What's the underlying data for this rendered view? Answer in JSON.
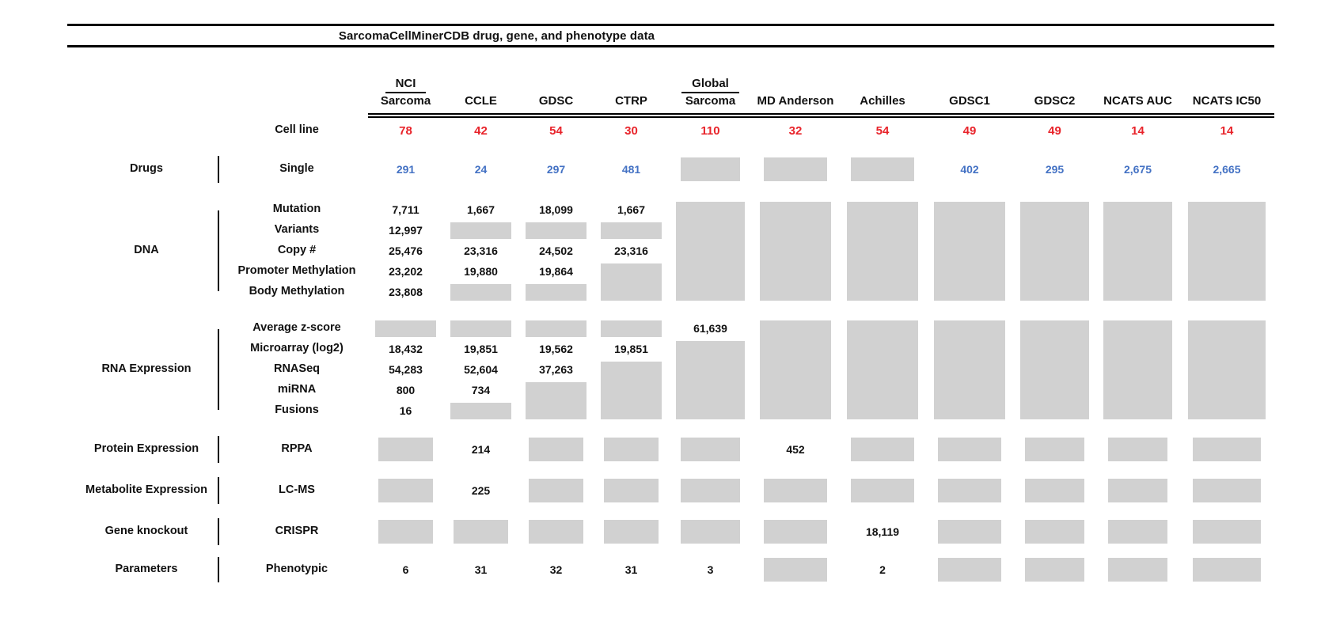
{
  "title": "SarcomaCellMinerCDB drug, gene, and phenotype data",
  "colors": {
    "red": "#e8232a",
    "blue": "#4472c4",
    "box_gray": "#d1d1d1",
    "text": "#111111"
  },
  "chart_data": {
    "type": "table",
    "title": "SarcomaCellMinerCDB drug, gene, and phenotype data",
    "note_gray_cells": "gray box shown in cell (no number displayed)",
    "columns": [
      {
        "id": "nci-sarcoma",
        "label_top": "NCI",
        "label": "Sarcoma"
      },
      {
        "id": "ccle",
        "label": "CCLE"
      },
      {
        "id": "gdsc",
        "label": "GDSC"
      },
      {
        "id": "ctrp",
        "label": "CTRP"
      },
      {
        "id": "global-sarcoma",
        "label_top": "Global",
        "label": "Sarcoma"
      },
      {
        "id": "md-anderson",
        "label": "MD Anderson"
      },
      {
        "id": "achilles",
        "label": "Achilles"
      },
      {
        "id": "gdsc1",
        "label": "GDSC1"
      },
      {
        "id": "gdsc2",
        "label": "GDSC2"
      },
      {
        "id": "ncats-auc",
        "label": "NCATS AUC"
      },
      {
        "id": "ncats-ic50",
        "label": "NCATS IC50"
      }
    ],
    "cell_line_row": {
      "label": "Cell line",
      "values": [
        "78",
        "42",
        "54",
        "30",
        "110",
        "32",
        "54",
        "49",
        "49",
        "14",
        "14"
      ]
    },
    "sections": [
      {
        "id": "drugs",
        "category": "Drugs",
        "rows": [
          {
            "label": "Single",
            "cells": [
              {
                "v": "291",
                "c": "blue"
              },
              {
                "v": "24",
                "c": "blue"
              },
              {
                "v": "297",
                "c": "blue"
              },
              {
                "v": "481",
                "c": "blue"
              },
              {
                "b": 1
              },
              {
                "b": 1
              },
              {
                "b": 1
              },
              {
                "v": "402",
                "c": "blue"
              },
              {
                "v": "295",
                "c": "blue"
              },
              {
                "v": "2,675",
                "c": "blue"
              },
              {
                "v": "2,665",
                "c": "blue"
              }
            ]
          }
        ]
      },
      {
        "id": "dna",
        "category": "DNA",
        "rows": [
          {
            "label": "Mutation",
            "cells": [
              {
                "v": "7,711"
              },
              {
                "v": "1,667"
              },
              {
                "v": "18,099"
              },
              {
                "v": "1,667"
              },
              {
                "b": 5
              },
              {
                "b": 5
              },
              {
                "b": 5
              },
              {
                "b": 5
              },
              {
                "b": 5
              },
              {
                "b": 5
              },
              {
                "b": 5
              }
            ]
          },
          {
            "label": "Variants",
            "cells": [
              {
                "v": "12,997"
              },
              {
                "b": 1
              },
              {
                "b": 1
              },
              {
                "b": 1
              },
              null,
              null,
              null,
              null,
              null,
              null,
              null
            ]
          },
          {
            "label": "Copy #",
            "cells": [
              {
                "v": "25,476"
              },
              {
                "v": "23,316"
              },
              {
                "v": "24,502"
              },
              {
                "v": "23,316"
              },
              null,
              null,
              null,
              null,
              null,
              null,
              null
            ]
          },
          {
            "label": "Promoter Methylation",
            "cells": [
              {
                "v": "23,202"
              },
              {
                "v": "19,880"
              },
              {
                "v": "19,864"
              },
              {
                "b": 2
              },
              null,
              null,
              null,
              null,
              null,
              null,
              null
            ]
          },
          {
            "label": "Body Methylation",
            "cells": [
              {
                "v": "23,808"
              },
              {
                "b": 1
              },
              {
                "b": 1
              },
              null,
              null,
              null,
              null,
              null,
              null,
              null,
              null
            ]
          }
        ]
      },
      {
        "id": "rna",
        "category": "RNA Expression",
        "rows": [
          {
            "label": "Average z-score",
            "cells": [
              {
                "b": 1
              },
              {
                "b": 1
              },
              {
                "b": 1
              },
              {
                "b": 1
              },
              {
                "v": "61,639"
              },
              {
                "b": 5
              },
              {
                "b": 5
              },
              {
                "b": 5
              },
              {
                "b": 5
              },
              {
                "b": 5
              },
              {
                "b": 5
              }
            ]
          },
          {
            "label": "Microarray (log2)",
            "cells": [
              {
                "v": "18,432"
              },
              {
                "v": "19,851"
              },
              {
                "v": "19,562"
              },
              {
                "v": "19,851"
              },
              {
                "b": 4
              },
              null,
              null,
              null,
              null,
              null,
              null
            ]
          },
          {
            "label": "RNASeq",
            "cells": [
              {
                "v": "54,283"
              },
              {
                "v": "52,604"
              },
              {
                "v": "37,263"
              },
              {
                "b": 3
              },
              null,
              null,
              null,
              null,
              null,
              null,
              null
            ]
          },
          {
            "label": "miRNA",
            "cells": [
              {
                "v": "800"
              },
              {
                "v": "734"
              },
              {
                "b": 2
              },
              null,
              null,
              null,
              null,
              null,
              null,
              null,
              null
            ]
          },
          {
            "label": "Fusions",
            "cells": [
              {
                "v": "16"
              },
              {
                "b": 1
              },
              null,
              null,
              null,
              null,
              null,
              null,
              null,
              null,
              null
            ]
          }
        ]
      },
      {
        "id": "protein",
        "category": "Protein Expression",
        "rows": [
          {
            "label": "RPPA",
            "cells": [
              {
                "b": 1
              },
              {
                "v": "214"
              },
              {
                "b": 1
              },
              {
                "b": 1
              },
              {
                "b": 1
              },
              {
                "v": "452"
              },
              {
                "b": 1
              },
              {
                "b": 1
              },
              {
                "b": 1
              },
              {
                "b": 1
              },
              {
                "b": 1
              }
            ]
          }
        ]
      },
      {
        "id": "metabolite",
        "category": "Metabolite Expression",
        "rows": [
          {
            "label": "LC-MS",
            "cells": [
              {
                "b": 1
              },
              {
                "v": "225"
              },
              {
                "b": 1
              },
              {
                "b": 1
              },
              {
                "b": 1
              },
              {
                "b": 1
              },
              {
                "b": 1
              },
              {
                "b": 1
              },
              {
                "b": 1
              },
              {
                "b": 1
              },
              {
                "b": 1
              }
            ]
          }
        ]
      },
      {
        "id": "knockout",
        "category": "Gene knockout",
        "rows": [
          {
            "label": "CRISPR",
            "cells": [
              {
                "b": 1
              },
              {
                "b": 1
              },
              {
                "b": 1
              },
              {
                "b": 1
              },
              {
                "b": 1
              },
              {
                "b": 1
              },
              {
                "v": "18,119"
              },
              {
                "b": 1
              },
              {
                "b": 1
              },
              {
                "b": 1
              },
              {
                "b": 1
              }
            ]
          }
        ]
      },
      {
        "id": "parameters",
        "category": "Parameters",
        "rows": [
          {
            "label": "Phenotypic",
            "cells": [
              {
                "v": "6"
              },
              {
                "v": "31"
              },
              {
                "v": "32"
              },
              {
                "v": "31"
              },
              {
                "v": "3"
              },
              {
                "b": 1
              },
              {
                "v": "2"
              },
              {
                "b": 1
              },
              {
                "b": 1
              },
              {
                "b": 1
              },
              {
                "b": 1
              }
            ]
          }
        ]
      }
    ]
  }
}
